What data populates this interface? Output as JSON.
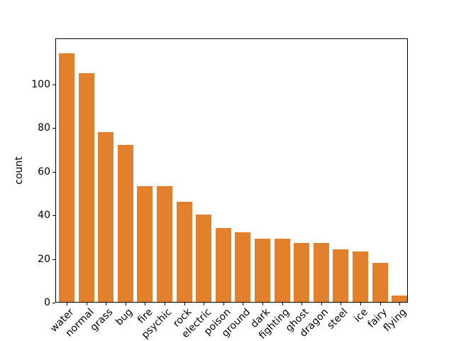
{
  "chart_data": {
    "type": "bar",
    "title": "",
    "categories": [
      "water",
      "normal",
      "grass",
      "bug",
      "fire",
      "psychic",
      "rock",
      "electric",
      "poison",
      "ground",
      "dark",
      "fighting",
      "ghost",
      "dragon",
      "steel",
      "ice",
      "fairy",
      "flying"
    ],
    "values": [
      114,
      105,
      78,
      72,
      53,
      53,
      46,
      40,
      34,
      32,
      29,
      29,
      27,
      27,
      24,
      23,
      18,
      3
    ],
    "xlabel": "",
    "ylabel": "count",
    "yticks": [
      0,
      20,
      40,
      60,
      80,
      100
    ],
    "ylim": [
      0,
      121
    ],
    "x_tick_rotation_deg": 45,
    "grid": false,
    "legend_position": "none",
    "bar_color": "#e1812c",
    "axis_color": "#000000",
    "text_color": "#000000",
    "background_color": "#ffffff"
  }
}
